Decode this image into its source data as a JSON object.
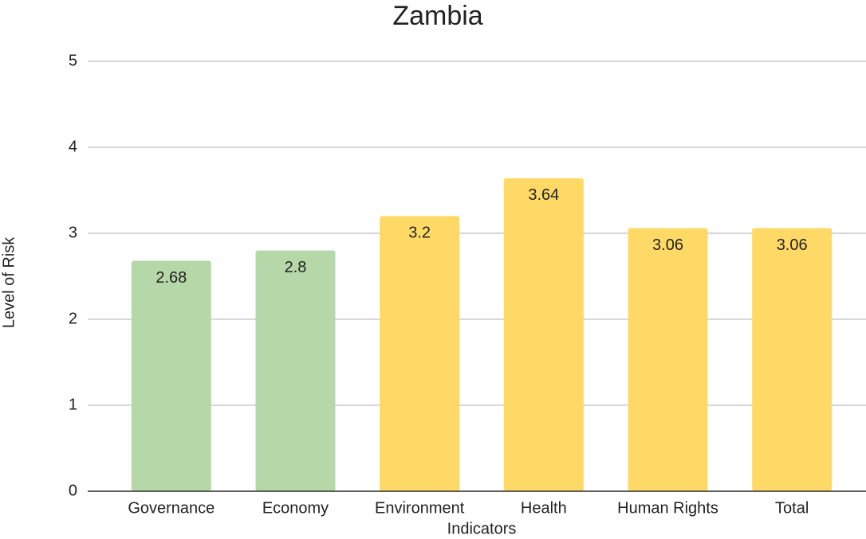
{
  "chart_data": {
    "type": "bar",
    "title": "Zambia",
    "x_label": "Indicators",
    "y_label": "Level of Risk",
    "categories": [
      "Governance",
      "Economy",
      "Environment",
      "Health",
      "Human Rights",
      "Total"
    ],
    "values": [
      2.68,
      2.8,
      3.2,
      3.64,
      3.06,
      3.06
    ],
    "colors": [
      "#b6d7a8",
      "#b6d7a8",
      "#ffd966",
      "#ffd966",
      "#ffd966",
      "#ffd966"
    ],
    "ylim": [
      0,
      5
    ],
    "yticks": [
      0,
      1,
      2,
      3,
      4,
      5
    ],
    "grid": true
  }
}
